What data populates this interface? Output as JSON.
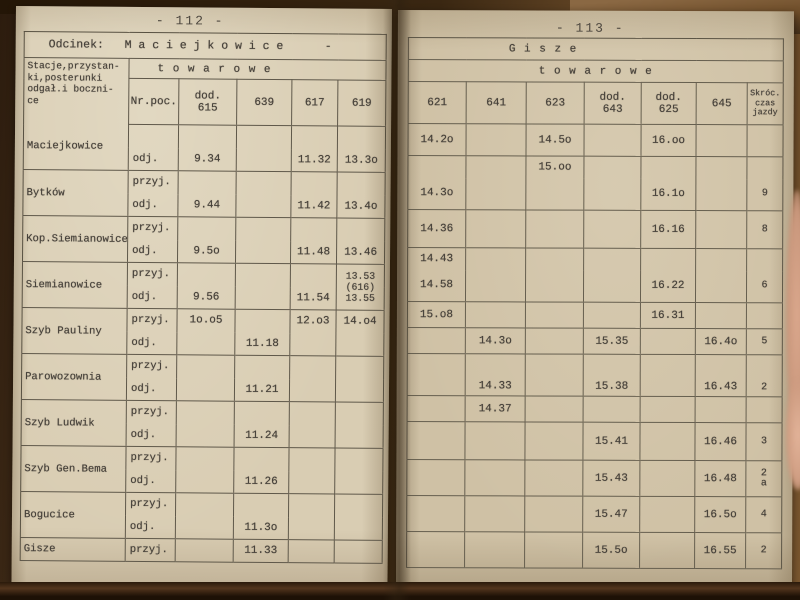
{
  "left_page_number": "- 112 -",
  "right_page_number": "- 113 -",
  "left_table": {
    "section_label": "Odcinek:",
    "section_name": "M a c i e j k o w i c e",
    "section_dash": "-",
    "stations_header": "Stacje,przystan-\nki,posterunki\nodgał.i boczni-\nce",
    "category_header": "t o w a r o w e",
    "train_no_header": "Nr.poc.",
    "columns": [
      "dod.\n615",
      "639",
      "617",
      "619"
    ],
    "rows": [
      {
        "station": "Maciejkowice",
        "sub": [
          {
            "label": "",
            "cells": [
              "",
              "",
              "",
              ""
            ]
          },
          {
            "label": "odj.",
            "cells": [
              "9.34",
              "",
              "11.32",
              "13.3o"
            ]
          }
        ]
      },
      {
        "station": "Bytków",
        "sub": [
          {
            "label": "przyj.",
            "cells": [
              "",
              "",
              "",
              ""
            ]
          },
          {
            "label": "odj.",
            "cells": [
              "9.44",
              "",
              "11.42",
              "13.4o"
            ]
          }
        ]
      },
      {
        "station": "Kop.Siemianowice",
        "sub": [
          {
            "label": "przyj.",
            "cells": [
              "",
              "",
              "",
              ""
            ]
          },
          {
            "label": "odj.",
            "cells": [
              "9.5o",
              "",
              "11.48",
              "13.46"
            ]
          }
        ]
      },
      {
        "station": "Siemianowice",
        "span619": "13.53\n(616)\n13.55",
        "sub": [
          {
            "label": "przyj.",
            "cells": [
              "",
              "",
              ""
            ]
          },
          {
            "label": "odj.",
            "cells": [
              "9.56",
              "",
              "11.54"
            ]
          }
        ]
      },
      {
        "station": "Szyb Pauliny",
        "sub": [
          {
            "label": "przyj.",
            "cells": [
              "1o.o5",
              "",
              "12.o3",
              "14.o4"
            ]
          },
          {
            "label": "odj.",
            "cells": [
              "",
              "11.18",
              "",
              ""
            ]
          }
        ]
      },
      {
        "station": "Parowozownia",
        "sub": [
          {
            "label": "przyj.",
            "cells": [
              "",
              "",
              "",
              ""
            ]
          },
          {
            "label": "odj.",
            "cells": [
              "",
              "11.21",
              "",
              ""
            ]
          }
        ]
      },
      {
        "station": "Szyb Ludwik",
        "sub": [
          {
            "label": "przyj.",
            "cells": [
              "",
              "",
              "",
              ""
            ]
          },
          {
            "label": "odj.",
            "cells": [
              "",
              "11.24",
              "",
              ""
            ]
          }
        ]
      },
      {
        "station": "Szyb Gen.Bema",
        "sub": [
          {
            "label": "przyj.",
            "cells": [
              "",
              "",
              "",
              ""
            ]
          },
          {
            "label": "odj.",
            "cells": [
              "",
              "11.26",
              "",
              ""
            ]
          }
        ]
      },
      {
        "station": "Bogucice",
        "sub": [
          {
            "label": "przyj.",
            "cells": [
              "",
              "",
              "",
              ""
            ]
          },
          {
            "label": "odj.",
            "cells": [
              "",
              "11.3o",
              "",
              ""
            ]
          }
        ]
      },
      {
        "station": "Gisze",
        "sub": [
          {
            "label": "przyj.",
            "cells": [
              "",
              "11.33",
              "",
              ""
            ]
          }
        ]
      }
    ]
  },
  "right_table": {
    "section_name": "G i s z e",
    "category_header": "t o w a r o w e",
    "columns": [
      "621",
      "641",
      "623",
      "dod.\n643",
      "dod.\n625",
      "645",
      "Skróc.\nczas\njazdy"
    ],
    "rows": [
      {
        "h": 32,
        "border": true,
        "cells": [
          "14.2o",
          "",
          "14.5o",
          "",
          "16.oo",
          "",
          ""
        ]
      },
      {
        "h": 22,
        "border": false,
        "cells": [
          "",
          "",
          "15.oo",
          "",
          "",
          "",
          ""
        ]
      },
      {
        "h": 32,
        "border": true,
        "cells": [
          "14.3o",
          "",
          "",
          "",
          "16.1o",
          "",
          "9"
        ]
      },
      {
        "h": 38,
        "border": true,
        "cells": [
          "14.36",
          "",
          "",
          "",
          "16.16",
          "",
          "8"
        ]
      },
      {
        "h": 22,
        "border": false,
        "cells": [
          "14.43",
          "",
          "",
          "",
          "",
          "",
          ""
        ]
      },
      {
        "h": 32,
        "border": true,
        "cells": [
          "14.58",
          "",
          "",
          "",
          "16.22",
          "",
          "6"
        ]
      },
      {
        "h": 26,
        "border": true,
        "cells": [
          "15.o8",
          "",
          "",
          "",
          "16.31",
          "",
          ""
        ]
      },
      {
        "h": 26,
        "border": true,
        "cells": [
          "",
          "14.3o",
          "",
          "15.35",
          "",
          "16.4o",
          "5"
        ]
      },
      {
        "h": 42,
        "border": true,
        "valign": "bottom",
        "cells": [
          "",
          "14.33",
          "",
          "15.38",
          "",
          "16.43",
          "2"
        ]
      },
      {
        "h": 26,
        "border": true,
        "cells": [
          "",
          "14.37",
          "",
          "",
          "",
          "",
          ""
        ]
      },
      {
        "h": 38,
        "border": true,
        "cells": [
          "",
          "",
          "",
          "15.41",
          "",
          "16.46",
          "3"
        ]
      },
      {
        "h": 36,
        "border": true,
        "cells": [
          "",
          "",
          "",
          "15.43",
          "",
          "16.48",
          "2\na"
        ]
      },
      {
        "h": 36,
        "border": true,
        "cells": [
          "",
          "",
          "",
          "15.47",
          "",
          "16.5o",
          "4"
        ]
      },
      {
        "h": 36,
        "border": true,
        "cells": [
          "",
          "",
          "",
          "15.5o",
          "",
          "16.55",
          "2"
        ]
      }
    ]
  }
}
